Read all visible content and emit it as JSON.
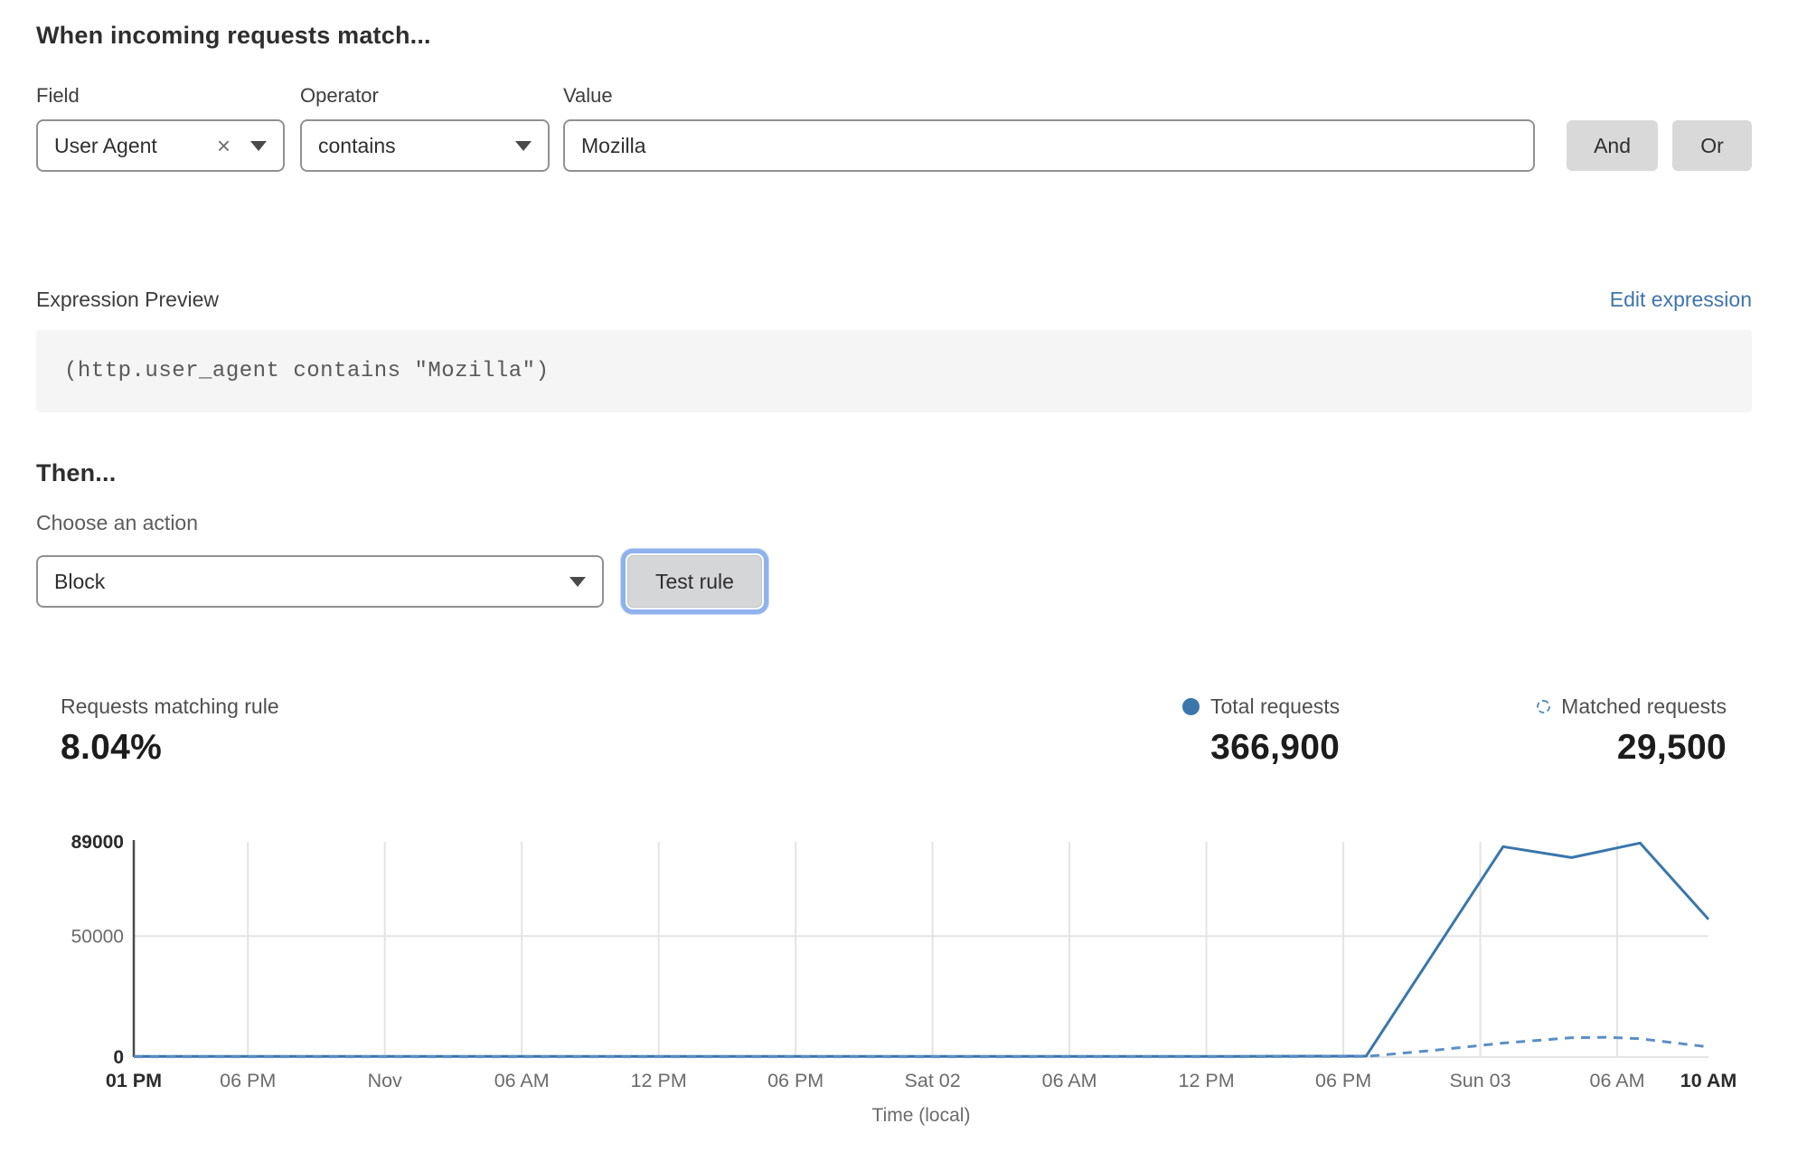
{
  "match_section": {
    "title": "When incoming requests match...",
    "field": {
      "label": "Field",
      "value": "User Agent",
      "clear_icon": "×"
    },
    "operator": {
      "label": "Operator",
      "value": "contains"
    },
    "value": {
      "label": "Value",
      "value": "Mozilla"
    },
    "and_label": "And",
    "or_label": "Or"
  },
  "expression": {
    "label": "Expression Preview",
    "edit_link": "Edit expression",
    "code": "(http.user_agent contains \"Mozilla\")"
  },
  "action_section": {
    "title": "Then...",
    "choose_label": "Choose an action",
    "action_value": "Block",
    "test_button": "Test rule"
  },
  "stats": {
    "matching_label": "Requests matching rule",
    "matching_value": "8.04%",
    "total_label": "Total requests",
    "total_value": "366,900",
    "matched_label": "Matched requests",
    "matched_value": "29,500"
  },
  "colors": {
    "accent_blue": "#3a76ab",
    "dashed_blue": "#5b8fc4",
    "link_blue": "#3e74ad",
    "grid": "#e4e4e4",
    "axis": "#4a4a4a",
    "tick_bold": "#2b2b2b",
    "tick_gray": "#6b6b6b"
  },
  "chart_data": {
    "type": "line",
    "title": "",
    "xlabel": "Time (local)",
    "ylabel": "",
    "ylim": [
      0,
      89000
    ],
    "grid": true,
    "legend_position": "top-right",
    "x_hours_total": 69,
    "yticks": [
      {
        "value": 0,
        "label": "0",
        "bold": true
      },
      {
        "value": 50000,
        "label": "50000",
        "bold": false
      },
      {
        "value": 89000,
        "label": "89000",
        "bold": true
      }
    ],
    "xticks": [
      {
        "hour": 0,
        "label": "01 PM",
        "bold": true
      },
      {
        "hour": 5,
        "label": "06 PM",
        "bold": false
      },
      {
        "hour": 11,
        "label": "Nov",
        "bold": false
      },
      {
        "hour": 17,
        "label": "06 AM",
        "bold": false
      },
      {
        "hour": 23,
        "label": "12 PM",
        "bold": false
      },
      {
        "hour": 29,
        "label": "06 PM",
        "bold": false
      },
      {
        "hour": 35,
        "label": "Sat 02",
        "bold": false
      },
      {
        "hour": 41,
        "label": "06 AM",
        "bold": false
      },
      {
        "hour": 47,
        "label": "12 PM",
        "bold": false
      },
      {
        "hour": 53,
        "label": "06 PM",
        "bold": false
      },
      {
        "hour": 59,
        "label": "Sun 03",
        "bold": false
      },
      {
        "hour": 65,
        "label": "06 AM",
        "bold": false
      },
      {
        "hour": 69,
        "label": "10 AM",
        "bold": true
      }
    ],
    "series": [
      {
        "name": "Total requests",
        "style": "solid",
        "points": [
          [
            0,
            300
          ],
          [
            6,
            300
          ],
          [
            12,
            300
          ],
          [
            18,
            300
          ],
          [
            24,
            300
          ],
          [
            30,
            300
          ],
          [
            36,
            300
          ],
          [
            42,
            300
          ],
          [
            48,
            300
          ],
          [
            54,
            400
          ],
          [
            60,
            87000
          ],
          [
            63,
            82500
          ],
          [
            66,
            88500
          ],
          [
            69,
            57000
          ]
        ]
      },
      {
        "name": "Matched requests",
        "style": "dashed",
        "points": [
          [
            0,
            150
          ],
          [
            6,
            150
          ],
          [
            12,
            150
          ],
          [
            18,
            150
          ],
          [
            24,
            150
          ],
          [
            30,
            150
          ],
          [
            36,
            150
          ],
          [
            42,
            150
          ],
          [
            48,
            150
          ],
          [
            54,
            250
          ],
          [
            57,
            2800
          ],
          [
            60,
            5800
          ],
          [
            63,
            8000
          ],
          [
            64.5,
            8200
          ],
          [
            66,
            7600
          ],
          [
            69,
            4200
          ]
        ]
      }
    ]
  }
}
